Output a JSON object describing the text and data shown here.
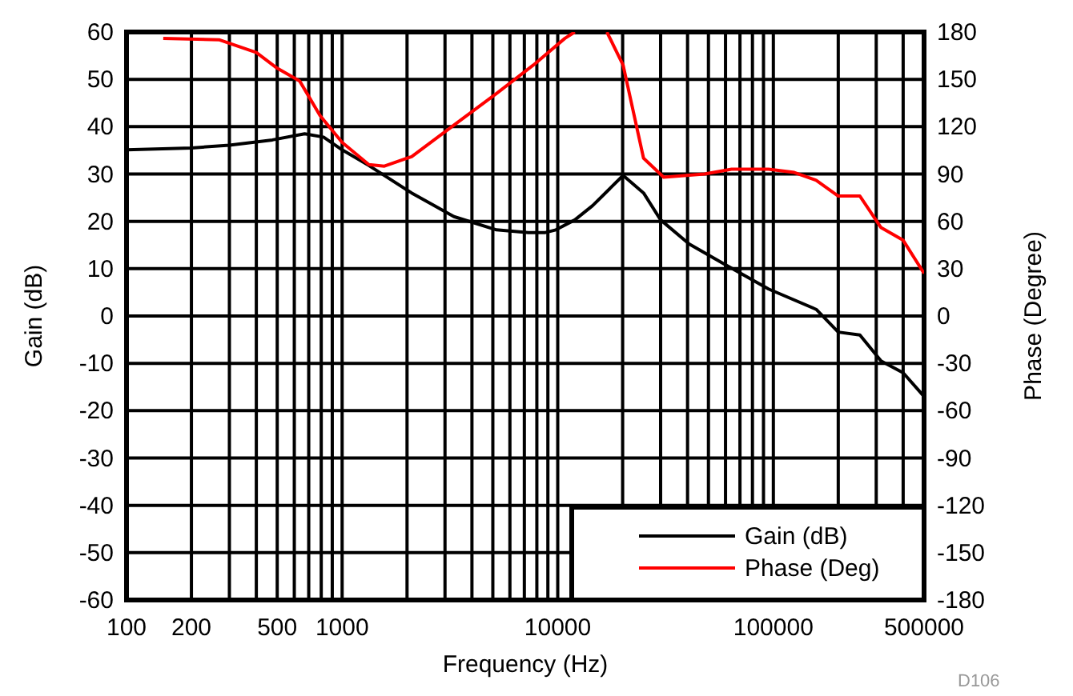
{
  "chart_data": {
    "type": "line",
    "xlabel": "Frequency (Hz)",
    "ylabel": "Gain (dB)",
    "y2label": "Phase (Degree)",
    "log": "x",
    "grid": true,
    "legend": "bottom right",
    "line_style": "solid",
    "marker": "none",
    "xlim": [
      100,
      500000
    ],
    "xticks": [
      100,
      200,
      {
        "value": 300,
        "label": null
      },
      {
        "value": 400,
        "label": null
      },
      500,
      {
        "value": 600,
        "label": null
      },
      {
        "value": 700,
        "label": null
      },
      {
        "value": 800,
        "label": null
      },
      {
        "value": 900,
        "label": null
      },
      1000,
      {
        "value": 2000,
        "label": null
      },
      {
        "value": 3000,
        "label": null
      },
      {
        "value": 4000,
        "label": null
      },
      {
        "value": 5000,
        "label": null
      },
      {
        "value": 6000,
        "label": null
      },
      {
        "value": 7000,
        "label": null
      },
      {
        "value": 8000,
        "label": null
      },
      {
        "value": 9000,
        "label": null
      },
      10000,
      {
        "value": 20000,
        "label": null
      },
      {
        "value": 30000,
        "label": null
      },
      {
        "value": 40000,
        "label": null
      },
      {
        "value": 50000,
        "label": null
      },
      {
        "value": 60000,
        "label": null
      },
      {
        "value": 70000,
        "label": null
      },
      {
        "value": 80000,
        "label": null
      },
      {
        "value": 90000,
        "label": null
      },
      100000,
      {
        "value": 200000,
        "label": null
      },
      {
        "value": 300000,
        "label": null
      },
      {
        "value": 400000,
        "label": null
      },
      500000
    ],
    "ylim": [
      -60,
      60
    ],
    "yticks": [
      -60,
      -50,
      -40,
      -30,
      -20,
      -10,
      0,
      10,
      20,
      30,
      40,
      50,
      60
    ],
    "y2lim": [
      -180,
      180
    ],
    "y2ticks": [
      -180,
      -150,
      -120,
      -90,
      -60,
      -30,
      0,
      30,
      60,
      90,
      120,
      150,
      180
    ],
    "series": [
      {
        "name": "Gain (dB)",
        "color": "#000000",
        "x": [
          100,
          200,
          300,
          475,
          670,
          820,
          1000,
          1330,
          2100,
          3300,
          5200,
          7300,
          8700,
          9800,
          12000,
          14500,
          20100,
          25000,
          30000,
          40700,
          60000,
          95000,
          158000,
          200000,
          252000,
          316000,
          400000,
          500000
        ],
        "values": [
          35.1,
          35.5,
          36.1,
          37.2,
          38.5,
          37.8,
          35.1,
          31.8,
          26,
          21,
          18.2,
          17.6,
          17.6,
          18.2,
          20.3,
          23.3,
          29.7,
          26,
          20.3,
          15.2,
          10.8,
          5.7,
          1.4,
          -3.4,
          -4,
          -9.5,
          -12,
          -17
        ]
      },
      {
        "name": "Phase (Deg)",
        "color": "#ff0000",
        "axis": "y2",
        "x": [
          148,
          270,
          400,
          500,
          635,
          790,
          1000,
          1330,
          1570,
          2100,
          3300,
          5200,
          7700,
          10800,
          12000,
          14000,
          16900,
          20100,
          25000,
          31000,
          48000,
          64000,
          95000,
          125000,
          158000,
          200000,
          252000,
          316000,
          400000,
          500000
        ],
        "values": [
          176,
          175,
          167,
          157,
          149,
          127,
          110,
          96,
          95,
          101,
          121,
          141,
          159,
          176,
          180,
          null,
          180,
          159,
          100,
          88,
          90,
          93,
          93,
          91,
          86,
          76,
          76,
          56,
          48,
          27
        ]
      }
    ],
    "annotations": [
      "D106"
    ]
  }
}
